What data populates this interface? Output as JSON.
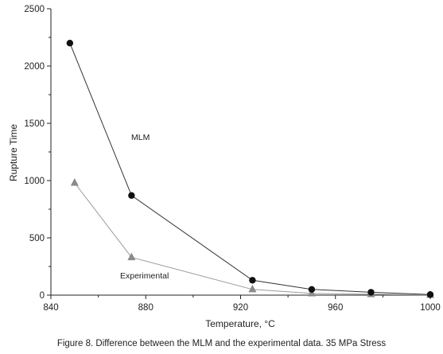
{
  "chart_data": {
    "type": "line",
    "title": "",
    "xlabel": "Temperature, °C",
    "ylabel": "Rupture Time",
    "xlim": [
      840,
      1000
    ],
    "ylim": [
      0,
      2500
    ],
    "xticks": [
      840,
      880,
      920,
      960,
      1000
    ],
    "yticks": [
      0,
      500,
      1000,
      1500,
      2000,
      2500
    ],
    "grid": false,
    "series": [
      {
        "name": "MLM",
        "marker": "circle",
        "color": "#111111",
        "line_color": "#333333",
        "x": [
          848,
          874,
          925,
          950,
          975,
          1000
        ],
        "y": [
          2200,
          870,
          130,
          50,
          25,
          5
        ]
      },
      {
        "name": "Experimental",
        "marker": "triangle",
        "color": "#8a8a8a",
        "line_color": "#9a9a9a",
        "x": [
          850,
          874,
          925,
          950,
          975,
          1000
        ],
        "y": [
          980,
          330,
          50,
          15,
          8,
          2
        ]
      }
    ]
  },
  "caption": "Figure 8. Difference between the MLM and the experimental data. 35 MPa Stress"
}
